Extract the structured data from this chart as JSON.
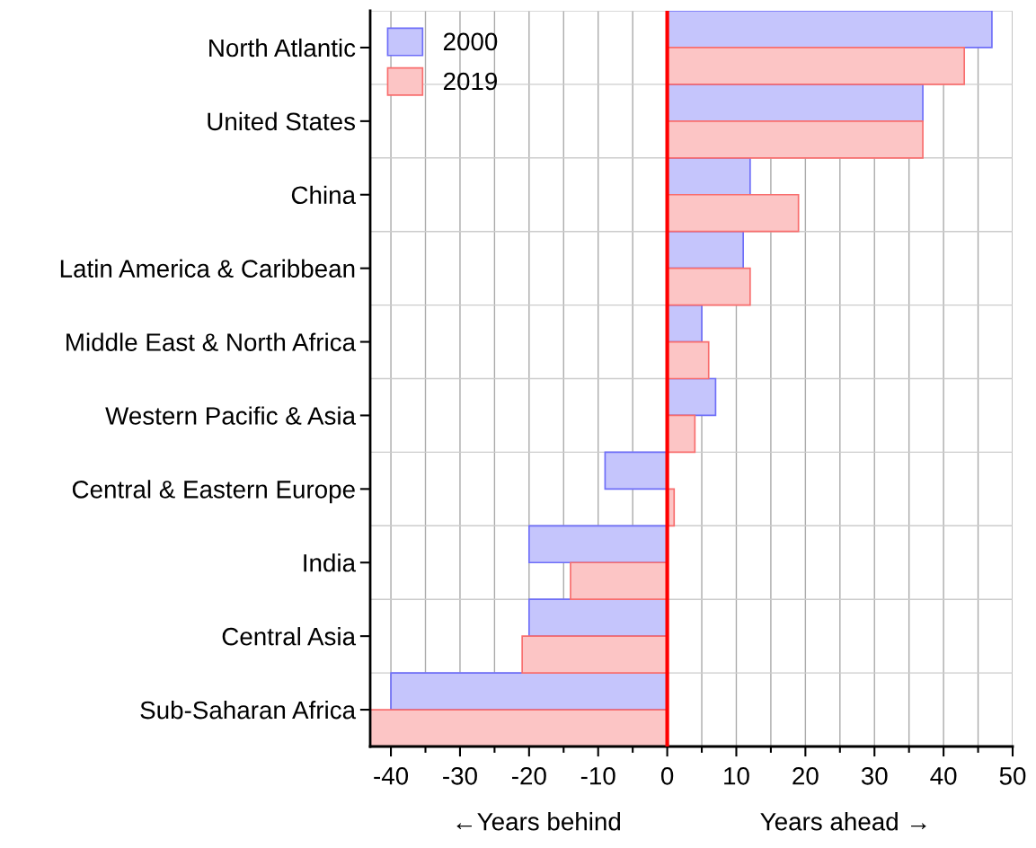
{
  "chart_data": {
    "type": "bar",
    "orientation": "horizontal",
    "xlabel": "←Years behind                    Years ahead →",
    "categories": [
      "North Atlantic",
      "United States",
      "China",
      "Latin America & Caribbean",
      "Middle East & North Africa",
      "Western Pacific & Asia",
      "Central & Eastern Europe",
      "India",
      "Central Asia",
      "Sub-Saharan Africa"
    ],
    "series": [
      {
        "name": "2000",
        "color": "#c5c5fc",
        "values": [
          47,
          37,
          12,
          11,
          5,
          7,
          -9,
          -20,
          -20,
          -40
        ]
      },
      {
        "name": "2019",
        "color": "#fcc5c5",
        "values": [
          43,
          37,
          19,
          12,
          6,
          4,
          1,
          -14,
          -21,
          -43
        ]
      }
    ],
    "xlim": [
      -43,
      50
    ],
    "xticks": [
      -40,
      -30,
      -20,
      -10,
      0,
      10,
      20,
      30,
      40,
      50
    ],
    "ref_lines": [
      {
        "axis": "x",
        "value": 0,
        "color": "#ff0000"
      }
    ],
    "grid": true,
    "legend": "top left"
  }
}
